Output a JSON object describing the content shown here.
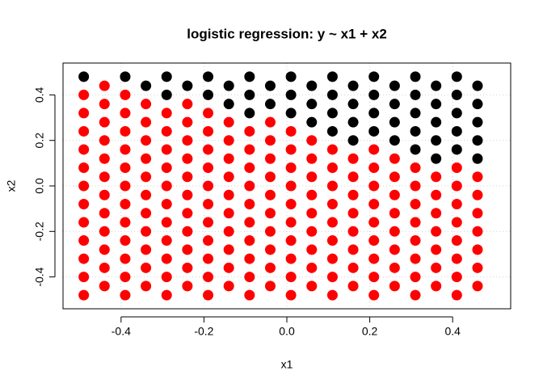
{
  "chart_data": {
    "type": "scatter",
    "title": "logistic regression: y ~ x1 + x2",
    "x_label": "x1",
    "y_label": "x2",
    "xlim": [
      -0.54,
      0.54
    ],
    "ylim": [
      -0.54,
      0.54
    ],
    "xticks": [
      -0.4,
      -0.2,
      {
        "value": 0,
        "label": "0.0"
      },
      0.2,
      0.4
    ],
    "yticks": [
      -0.4,
      -0.2,
      {
        "value": 0,
        "label": "0.0"
      },
      0.2,
      0.4
    ],
    "grid": true,
    "series": [
      {
        "color": "#000000",
        "x": [
          -0.49,
          -0.39,
          -0.34,
          -0.29,
          -0.29,
          -0.24,
          -0.19,
          -0.19,
          -0.14,
          -0.14,
          -0.09,
          -0.09,
          -0.09,
          -0.04,
          -0.04,
          0.01,
          0.01,
          0.01,
          0.06,
          0.06,
          0.06,
          0.11,
          0.11,
          0.11,
          0.11,
          0.16,
          0.16,
          0.16,
          0.16,
          0.21,
          0.21,
          0.21,
          0.21,
          0.26,
          0.26,
          0.26,
          0.26,
          0.31,
          0.31,
          0.31,
          0.31,
          0.31,
          0.36,
          0.36,
          0.36,
          0.36,
          0.36,
          0.41,
          0.41,
          0.41,
          0.41,
          0.41,
          0.46,
          0.46,
          0.46,
          0.46,
          0.46
        ],
        "y": [
          0.48,
          0.48,
          0.44,
          0.4,
          0.48,
          0.44,
          0.4,
          0.48,
          0.36,
          0.44,
          0.32,
          0.4,
          0.48,
          0.36,
          0.44,
          0.32,
          0.4,
          0.48,
          0.28,
          0.36,
          0.44,
          0.24,
          0.32,
          0.4,
          0.48,
          0.2,
          0.28,
          0.36,
          0.44,
          0.24,
          0.32,
          0.4,
          0.48,
          0.2,
          0.28,
          0.36,
          0.44,
          0.16,
          0.24,
          0.32,
          0.4,
          0.48,
          0.12,
          0.2,
          0.28,
          0.36,
          0.44,
          0.16,
          0.24,
          0.32,
          0.4,
          0.48,
          0.12,
          0.2,
          0.28,
          0.36,
          0.44
        ]
      },
      {
        "color": "#ff0000",
        "x": [
          -0.49,
          -0.49,
          -0.49,
          -0.49,
          -0.49,
          -0.49,
          -0.49,
          -0.49,
          -0.49,
          -0.49,
          -0.49,
          -0.49,
          -0.44,
          -0.44,
          -0.44,
          -0.44,
          -0.44,
          -0.44,
          -0.44,
          -0.44,
          -0.44,
          -0.44,
          -0.44,
          -0.44,
          -0.39,
          -0.39,
          -0.39,
          -0.39,
          -0.39,
          -0.39,
          -0.39,
          -0.39,
          -0.39,
          -0.39,
          -0.39,
          -0.39,
          -0.34,
          -0.34,
          -0.34,
          -0.34,
          -0.34,
          -0.34,
          -0.34,
          -0.34,
          -0.34,
          -0.34,
          -0.34,
          -0.29,
          -0.29,
          -0.29,
          -0.29,
          -0.29,
          -0.29,
          -0.29,
          -0.29,
          -0.29,
          -0.29,
          -0.29,
          -0.24,
          -0.24,
          -0.24,
          -0.24,
          -0.24,
          -0.24,
          -0.24,
          -0.24,
          -0.24,
          -0.24,
          -0.24,
          -0.19,
          -0.19,
          -0.19,
          -0.19,
          -0.19,
          -0.19,
          -0.19,
          -0.19,
          -0.19,
          -0.19,
          -0.19,
          -0.14,
          -0.14,
          -0.14,
          -0.14,
          -0.14,
          -0.14,
          -0.14,
          -0.14,
          -0.14,
          -0.14,
          -0.09,
          -0.09,
          -0.09,
          -0.09,
          -0.09,
          -0.09,
          -0.09,
          -0.09,
          -0.09,
          -0.09,
          -0.04,
          -0.04,
          -0.04,
          -0.04,
          -0.04,
          -0.04,
          -0.04,
          -0.04,
          -0.04,
          -0.04,
          0.01,
          0.01,
          0.01,
          0.01,
          0.01,
          0.01,
          0.01,
          0.01,
          0.01,
          0.01,
          0.06,
          0.06,
          0.06,
          0.06,
          0.06,
          0.06,
          0.06,
          0.06,
          0.06,
          0.11,
          0.11,
          0.11,
          0.11,
          0.11,
          0.11,
          0.11,
          0.11,
          0.11,
          0.16,
          0.16,
          0.16,
          0.16,
          0.16,
          0.16,
          0.16,
          0.16,
          0.21,
          0.21,
          0.21,
          0.21,
          0.21,
          0.21,
          0.21,
          0.21,
          0.21,
          0.26,
          0.26,
          0.26,
          0.26,
          0.26,
          0.26,
          0.26,
          0.26,
          0.31,
          0.31,
          0.31,
          0.31,
          0.31,
          0.31,
          0.31,
          0.31,
          0.36,
          0.36,
          0.36,
          0.36,
          0.36,
          0.36,
          0.36,
          0.41,
          0.41,
          0.41,
          0.41,
          0.41,
          0.41,
          0.41,
          0.41,
          0.46,
          0.46,
          0.46,
          0.46,
          0.46,
          0.46,
          0.46
        ],
        "y": [
          -0.48,
          -0.4,
          -0.32,
          -0.24,
          -0.16,
          -0.08,
          0,
          0.08,
          0.16,
          0.24,
          0.32,
          0.4,
          -0.44,
          -0.36,
          -0.28,
          -0.2,
          -0.12,
          -0.04,
          0.04,
          0.12,
          0.2,
          0.28,
          0.36,
          0.44,
          -0.48,
          -0.4,
          -0.32,
          -0.24,
          -0.16,
          -0.08,
          0,
          0.08,
          0.16,
          0.24,
          0.32,
          0.4,
          -0.44,
          -0.36,
          -0.28,
          -0.2,
          -0.12,
          -0.04,
          0.04,
          0.12,
          0.2,
          0.28,
          0.36,
          -0.48,
          -0.4,
          -0.32,
          -0.24,
          -0.16,
          -0.08,
          0,
          0.08,
          0.16,
          0.24,
          0.32,
          -0.44,
          -0.36,
          -0.28,
          -0.2,
          -0.12,
          -0.04,
          0.04,
          0.12,
          0.2,
          0.28,
          0.36,
          -0.48,
          -0.4,
          -0.32,
          -0.24,
          -0.16,
          -0.08,
          0,
          0.08,
          0.16,
          0.24,
          0.32,
          -0.44,
          -0.36,
          -0.28,
          -0.2,
          -0.12,
          -0.04,
          0.04,
          0.12,
          0.2,
          0.28,
          -0.48,
          -0.4,
          -0.32,
          -0.24,
          -0.16,
          -0.08,
          0,
          0.08,
          0.16,
          0.24,
          -0.44,
          -0.36,
          -0.28,
          -0.2,
          -0.12,
          -0.04,
          0.04,
          0.12,
          0.2,
          0.28,
          -0.48,
          -0.4,
          -0.32,
          -0.24,
          -0.16,
          -0.08,
          0,
          0.08,
          0.16,
          0.24,
          -0.44,
          -0.36,
          -0.28,
          -0.2,
          -0.12,
          -0.04,
          0.04,
          0.12,
          0.2,
          -0.48,
          -0.4,
          -0.32,
          -0.24,
          -0.16,
          -0.08,
          0,
          0.08,
          0.16,
          -0.44,
          -0.36,
          -0.28,
          -0.2,
          -0.12,
          -0.04,
          0.04,
          0.12,
          -0.48,
          -0.4,
          -0.32,
          -0.24,
          -0.16,
          -0.08,
          0,
          0.08,
          0.16,
          -0.44,
          -0.36,
          -0.28,
          -0.2,
          -0.12,
          -0.04,
          0.04,
          0.12,
          -0.48,
          -0.4,
          -0.32,
          -0.24,
          -0.16,
          -0.08,
          0,
          0.08,
          -0.44,
          -0.36,
          -0.28,
          -0.2,
          -0.12,
          -0.04,
          0.04,
          -0.48,
          -0.4,
          -0.32,
          -0.24,
          -0.16,
          -0.08,
          0,
          0.08,
          -0.44,
          -0.36,
          -0.28,
          -0.2,
          -0.12,
          -0.04,
          0.04
        ]
      }
    ]
  }
}
